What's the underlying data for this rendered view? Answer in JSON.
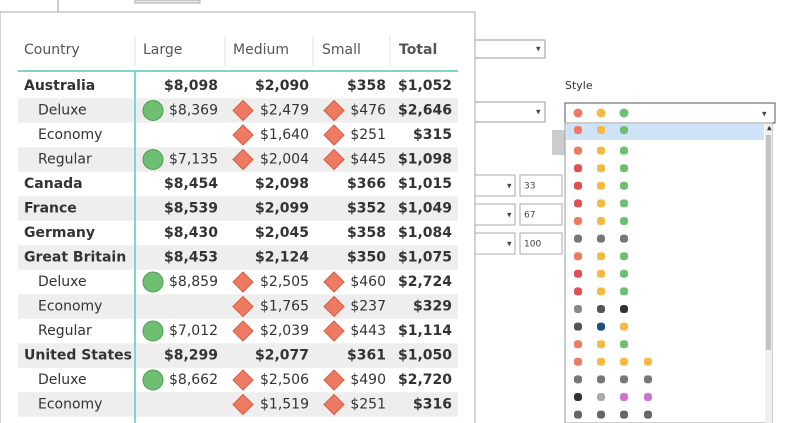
{
  "table": {
    "headers": [
      "Country",
      "Large",
      "Medium",
      "Small",
      "Total"
    ],
    "rows": [
      [
        "Australia",
        "$8,098",
        "$2,090",
        "$358",
        "$1,052"
      ],
      [
        "Deluxe",
        "$8,369",
        "$2,479",
        "$476",
        "$2,646"
      ],
      [
        "Economy",
        null,
        "$1,640",
        "$251",
        "$315"
      ],
      [
        "Regular",
        "$7,135",
        "$2,004",
        "$445",
        "$1,098"
      ],
      [
        "Canada",
        "$8,454",
        "$2,098",
        "$366",
        "$1,015"
      ],
      [
        "France",
        "$8,539",
        "$2,099",
        "$352",
        "$1,049"
      ],
      [
        "Germany",
        "$8,430",
        "$2,045",
        "$358",
        "$1,084"
      ],
      [
        "Great Britain",
        "$8,453",
        "$2,124",
        "$350",
        "$1,075"
      ],
      [
        "Deluxe",
        "$8,859",
        "$2,505",
        "$460",
        "$2,724"
      ],
      [
        "Economy",
        null,
        "$1,765",
        "$237",
        "$329"
      ],
      [
        "Regular",
        "$7,012",
        "$2,039",
        "$443",
        "$1,114"
      ],
      [
        "United States",
        "$8,299",
        "$2,077",
        "$361",
        "$1,050"
      ],
      [
        "Deluxe",
        "$8,662",
        "$2,506",
        "$490",
        "$2,720"
      ],
      [
        "Economy",
        null,
        "$1,519",
        "$251",
        "$316"
      ]
    ]
  },
  "panel": {
    "style_label": "Style",
    "inputs": [
      "33",
      "67",
      "100"
    ]
  }
}
